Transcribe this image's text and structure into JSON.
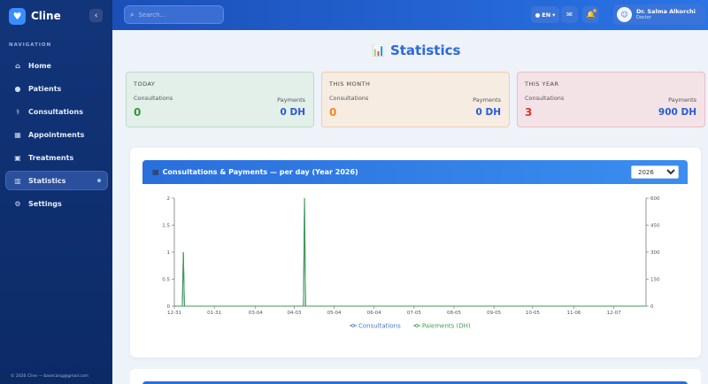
{
  "app": {
    "name": "Cline",
    "logo_icon": "heart-icon"
  },
  "sidebar": {
    "section_title": "NAVIGATION",
    "items": [
      {
        "label": "Home",
        "icon": "home-icon",
        "glyph": "⌂"
      },
      {
        "label": "Patients",
        "icon": "users-icon",
        "glyph": "👥"
      },
      {
        "label": "Consultations",
        "icon": "stethoscope-icon",
        "glyph": "⚕"
      },
      {
        "label": "Appointments",
        "icon": "calendar-icon",
        "glyph": "▦"
      },
      {
        "label": "Treatments",
        "icon": "briefcase-icon",
        "glyph": "▣"
      },
      {
        "label": "Statistics",
        "icon": "chart-icon",
        "glyph": "▥",
        "active": true
      },
      {
        "label": "Settings",
        "icon": "gear-icon",
        "glyph": "⚙"
      }
    ],
    "footer": "© 2026 Cline — basecaisg@gmail.com"
  },
  "header": {
    "search_placeholder": "Search...",
    "language": "EN",
    "user_name": "Dr. Salma Alkorchi",
    "user_role": "Doctor"
  },
  "page": {
    "title": "Statistics"
  },
  "cards": [
    {
      "title": "TODAY",
      "label1": "Consultations",
      "value1": "0",
      "label2": "Payments",
      "value2": "0 DH"
    },
    {
      "title": "THIS MONTH",
      "label1": "Consultations",
      "value1": "0",
      "label2": "Payments",
      "value2": "0 DH"
    },
    {
      "title": "THIS YEAR",
      "label1": "Consultations",
      "value1": "3",
      "label2": "Payments",
      "value2": "900 DH"
    }
  ],
  "chart_panel": {
    "title": "Consultations & Payments — per day (Year 2026)",
    "year_selected": "2026",
    "year_options": [
      "2026"
    ]
  },
  "chart_data": {
    "type": "line",
    "x_ticks": [
      "12-31",
      "01-31",
      "03-04",
      "04-03",
      "05-04",
      "06-04",
      "07-05",
      "08-05",
      "09-05",
      "10-05",
      "11-06",
      "12-07"
    ],
    "left_axis": {
      "ticks": [
        "0",
        "0.5",
        "1",
        "1.5",
        "2"
      ],
      "ylim": [
        0,
        2
      ]
    },
    "right_axis": {
      "ticks": [
        "0",
        "150",
        "300",
        "450",
        "600"
      ],
      "ylim": [
        0,
        600
      ]
    },
    "series": [
      {
        "name": "Consultations",
        "color": "#4a76c9",
        "values_note": "zero on all days except spikes",
        "points": [
          [
            "01-07",
            1
          ],
          [
            "04-11",
            2
          ]
        ]
      },
      {
        "name": "Paiements (DH)",
        "color": "#3e9a4e",
        "points": [
          [
            "01-07",
            300
          ],
          [
            "04-11",
            600
          ]
        ]
      }
    ],
    "legend_position": "bottom",
    "grid": false
  }
}
